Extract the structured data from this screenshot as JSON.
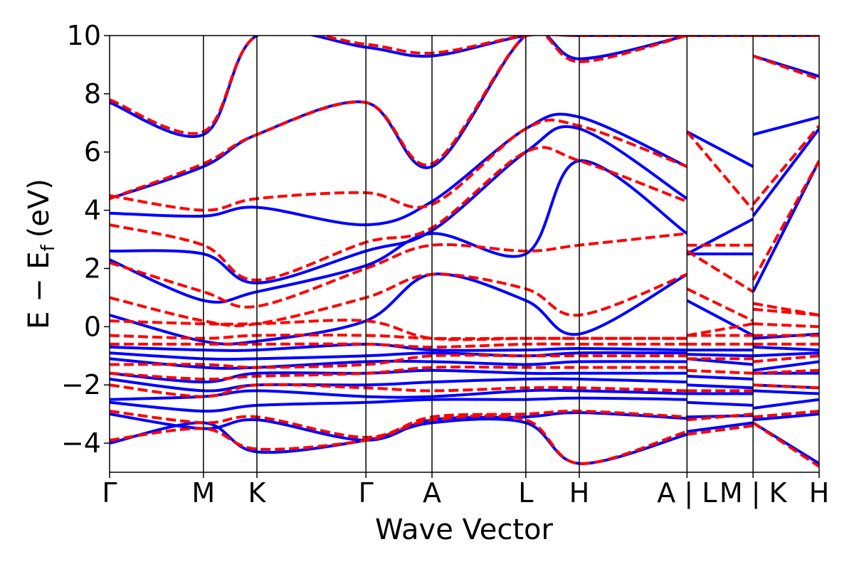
{
  "chart_data": {
    "type": "line",
    "title": "",
    "xlabel": "Wave Vector",
    "ylabel": "E − E",
    "ylabel_subscript": "f",
    "ylabel_unit": "(eV)",
    "ylim": [
      -5,
      10
    ],
    "yticks": [
      -4,
      -2,
      0,
      2,
      4,
      6,
      8,
      10
    ],
    "ytick_labels": [
      "−4",
      "−2",
      "0",
      "2",
      "4",
      "6",
      "8",
      "10"
    ],
    "grid": false,
    "legend": "none",
    "x_segment_lengths": [
      1.42,
      0.81,
      1.65,
      1.0,
      1.42,
      0.81,
      1.63,
      1.0,
      1.0
    ],
    "path_nodes": [
      "Γ",
      "M",
      "K",
      "Γ",
      "A",
      "L",
      "H",
      "A",
      "L",
      "M",
      "K",
      "H"
    ],
    "x_tick_labels": [
      "Γ",
      "M",
      "K",
      "Γ",
      "A",
      "L",
      "H",
      "A | L",
      "M | K",
      "H"
    ],
    "series": [
      {
        "style": "solid",
        "color": "#0000ff",
        "bands": [
          {
            "y": [
              -4.0,
              -3.3,
              -4.3,
              -3.9,
              -3.3,
              -3.3,
              -4.7,
              -3.7,
              -3.6,
              -3.3,
              -3.3,
              -4.7
            ]
          },
          {
            "y": [
              -3.0,
              -3.5,
              -3.2,
              -3.9,
              -3.2,
              -3.1,
              -2.95,
              -3.15,
              -3.1,
              -3.05,
              -3.2,
              -3.0
            ]
          },
          {
            "y": [
              -2.6,
              -2.9,
              -2.7,
              -2.6,
              -2.5,
              -2.5,
              -2.45,
              -2.5,
              -2.6,
              -2.7,
              -2.8,
              -2.5
            ]
          },
          {
            "y": [
              -2.5,
              -2.4,
              -2.2,
              -2.4,
              -2.4,
              -2.2,
              -2.2,
              -2.3,
              -2.3,
              -2.3,
              -2.2,
              -2.3
            ]
          },
          {
            "y": [
              -1.8,
              -2.2,
              -2.0,
              -2.0,
              -1.9,
              -1.8,
              -1.8,
              -1.9,
              -2.0,
              -2.1,
              -2.0,
              -2.1
            ]
          },
          {
            "y": [
              -1.6,
              -1.9,
              -1.6,
              -1.6,
              -1.5,
              -1.6,
              -1.6,
              -1.6,
              -1.7,
              -1.8,
              -1.6,
              -1.6
            ]
          },
          {
            "y": [
              -1.1,
              -1.4,
              -1.4,
              -1.2,
              -1.2,
              -1.3,
              -1.2,
              -1.2,
              -1.1,
              -1.3,
              -1.5,
              -1.2
            ]
          },
          {
            "y": [
              -0.9,
              -1.1,
              -1.1,
              -1.0,
              -0.9,
              -1.0,
              -0.9,
              -0.9,
              -0.95,
              -1.0,
              -1.0,
              -0.9
            ]
          },
          {
            "y": [
              -0.7,
              -0.8,
              -0.8,
              -0.6,
              -0.8,
              -0.8,
              -0.75,
              -0.8,
              -0.8,
              -0.8,
              -0.7,
              -0.8
            ]
          },
          {
            "y": [
              0.4,
              -0.5,
              -0.5,
              0.2,
              1.8,
              0.9,
              -0.25,
              1.8,
              0.9,
              -0.3,
              -0.4,
              -0.25
            ]
          },
          {
            "y": [
              2.3,
              0.9,
              1.2,
              2.1,
              3.2,
              2.5,
              5.7,
              3.2,
              2.5,
              2.5,
              1.2,
              5.7
            ]
          },
          {
            "y": [
              2.6,
              2.5,
              1.5,
              2.6,
              3.3,
              6.0,
              6.8,
              4.4,
              2.5,
              3.7,
              3.8,
              6.8
            ]
          },
          {
            "y": [
              3.9,
              3.8,
              4.1,
              3.5,
              4.3,
              6.8,
              7.2,
              5.5,
              6.7,
              5.5,
              6.6,
              7.2
            ]
          },
          {
            "y": [
              4.4,
              5.5,
              6.6,
              7.7,
              5.5,
              10.0,
              9.2,
              10.0,
              10.0,
              10.0,
              9.3,
              8.6
            ]
          },
          {
            "y": [
              7.7,
              6.6,
              10.0,
              9.6,
              9.3,
              10.0,
              10.0,
              10.0,
              10.0,
              10.0,
              10.0,
              10.0
            ]
          }
        ]
      },
      {
        "style": "dashed",
        "color": "#ff0000",
        "bands": [
          {
            "y": [
              -3.9,
              -3.5,
              -4.2,
              -3.9,
              -3.2,
              -3.2,
              -4.7,
              -3.6,
              -3.7,
              -3.4,
              -3.3,
              -4.8
            ]
          },
          {
            "y": [
              -2.9,
              -3.3,
              -3.1,
              -3.8,
              -3.1,
              -3.0,
              -2.9,
              -3.1,
              -3.2,
              -3.0,
              -3.1,
              -2.9
            ]
          },
          {
            "y": [
              -2.0,
              -2.4,
              -2.0,
              -2.1,
              -2.2,
              -2.1,
              -2.1,
              -2.2,
              -2.2,
              -2.2,
              -2.0,
              -2.1
            ]
          },
          {
            "y": [
              -1.6,
              -1.8,
              -1.7,
              -1.6,
              -1.4,
              -1.4,
              -1.4,
              -1.4,
              -1.5,
              -1.6,
              -1.6,
              -1.5
            ]
          },
          {
            "y": [
              -1.3,
              -1.3,
              -1.4,
              -1.3,
              -1.0,
              -1.0,
              -1.0,
              -1.0,
              -1.1,
              -1.1,
              -1.2,
              -1.0
            ]
          },
          {
            "y": [
              -0.6,
              -0.6,
              -0.6,
              -0.6,
              -0.7,
              -0.6,
              -0.6,
              -0.6,
              -0.6,
              -0.6,
              -0.6,
              -0.6
            ]
          },
          {
            "y": [
              -0.3,
              -0.4,
              -0.3,
              -0.3,
              -0.4,
              -0.4,
              -0.4,
              -0.4,
              -0.3,
              -0.3,
              -0.3,
              -0.3
            ]
          },
          {
            "y": [
              0.2,
              0.1,
              0.1,
              0.2,
              -0.4,
              -0.4,
              -0.4,
              -0.4,
              -0.3,
              0.1,
              0.1,
              0.0
            ]
          },
          {
            "y": [
              1.0,
              0.2,
              0.1,
              1.0,
              1.8,
              1.3,
              0.4,
              1.8,
              1.3,
              0.2,
              0.6,
              0.4
            ]
          },
          {
            "y": [
              2.2,
              1.2,
              0.7,
              2.0,
              2.8,
              2.6,
              2.8,
              3.2,
              2.6,
              1.2,
              0.8,
              0.4
            ]
          },
          {
            "y": [
              3.5,
              2.8,
              1.6,
              2.9,
              3.4,
              6.0,
              5.7,
              4.3,
              2.8,
              2.8,
              1.6,
              5.7
            ]
          },
          {
            "y": [
              4.5,
              4.0,
              4.4,
              4.6,
              4.2,
              6.8,
              6.9,
              5.5,
              6.7,
              4.0,
              4.2,
              6.9
            ]
          },
          {
            "y": [
              4.4,
              5.6,
              6.6,
              7.7,
              5.6,
              10.0,
              9.1,
              10.0,
              10.0,
              10.0,
              9.3,
              8.5
            ]
          },
          {
            "y": [
              7.8,
              6.7,
              10.0,
              9.7,
              9.4,
              10.0,
              10.0,
              10.0,
              10.0,
              10.0,
              10.0,
              10.0
            ]
          }
        ]
      }
    ]
  }
}
